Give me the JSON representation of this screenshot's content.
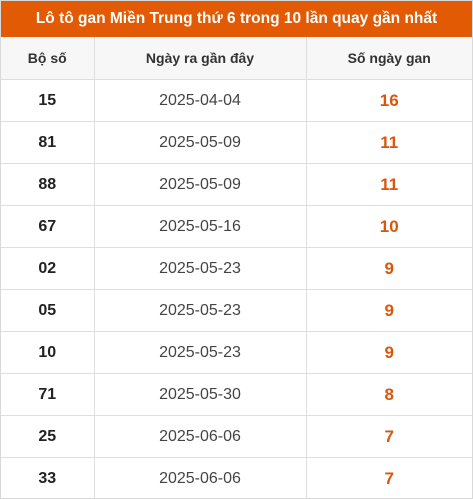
{
  "title": "Lô tô gan Miền Trung thứ 6 trong 10 lần quay gần nhất",
  "colors": {
    "header_bg": "#e25a03",
    "gan_value": "#d9560a"
  },
  "table": {
    "headers": [
      "Bộ số",
      "Ngày ra gần đây",
      "Số ngày gan"
    ],
    "rows": [
      {
        "num": "15",
        "date": "2025-04-04",
        "gan": "16"
      },
      {
        "num": "81",
        "date": "2025-05-09",
        "gan": "11"
      },
      {
        "num": "88",
        "date": "2025-05-09",
        "gan": "11"
      },
      {
        "num": "67",
        "date": "2025-05-16",
        "gan": "10"
      },
      {
        "num": "02",
        "date": "2025-05-23",
        "gan": "9"
      },
      {
        "num": "05",
        "date": "2025-05-23",
        "gan": "9"
      },
      {
        "num": "10",
        "date": "2025-05-23",
        "gan": "9"
      },
      {
        "num": "71",
        "date": "2025-05-30",
        "gan": "8"
      },
      {
        "num": "25",
        "date": "2025-06-06",
        "gan": "7"
      },
      {
        "num": "33",
        "date": "2025-06-06",
        "gan": "7"
      }
    ]
  }
}
